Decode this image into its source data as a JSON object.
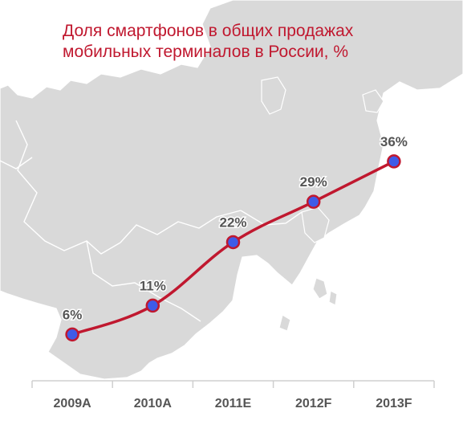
{
  "chart_data": {
    "type": "line",
    "title": [
      "Доля смартфонов в общих продажах",
      "мобильных терминалов в России, %"
    ],
    "categories": [
      "2009A",
      "2010A",
      "2011E",
      "2012F",
      "2013F"
    ],
    "values": [
      6,
      11,
      22,
      29,
      36
    ],
    "data_labels": [
      "6%",
      "11%",
      "22%",
      "29%",
      "36%"
    ],
    "xlabel": "",
    "ylabel": "",
    "ylim": [
      0,
      40
    ],
    "grid": false,
    "legend": "none",
    "colors": {
      "line": "#c0182f",
      "marker_fill": "#3f5be8",
      "marker_stroke": "#c0182f",
      "label": "#555555",
      "title": "#c0182f",
      "map": "#d9d9d9",
      "axis": "#cfcfcf"
    }
  }
}
